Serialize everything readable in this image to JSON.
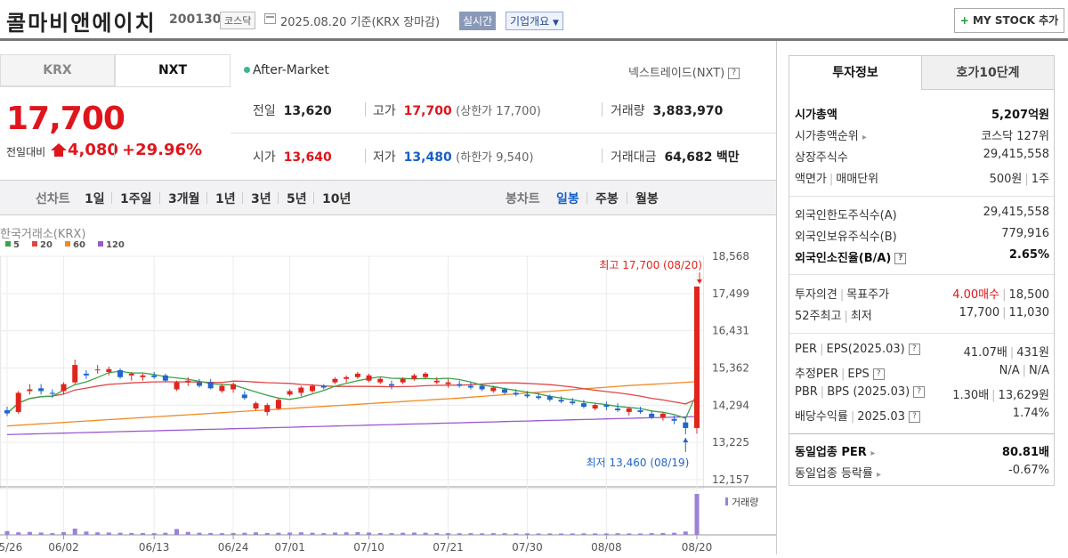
{
  "header": {
    "company": "콜마비앤에이치",
    "code": "200130",
    "market": "코스닥",
    "base_date": "2025.08.20 기준(KRX 장마감)",
    "realtime": "실시간",
    "corp_info": "기업개요",
    "my_stock": "MY STOCK 추가",
    "my_stock_icon": "plus-icon"
  },
  "tabs": {
    "krx": "KRX",
    "nxt": "NXT",
    "after_market": "After-Market",
    "nextrade": "넥스트레이드(NXT)"
  },
  "quote": {
    "price": "17,700",
    "prev_label": "전일대비",
    "change": "4,080",
    "change_pct": "+29.96%",
    "prev_close_label": "전일",
    "prev_close": "13,620",
    "high_label": "고가",
    "high": "17,700",
    "upper_limit": "(상한가 17,700)",
    "volume_label": "거래량",
    "volume": "3,883,970",
    "open_label": "시가",
    "open": "13,640",
    "low_label": "저가",
    "low": "13,480",
    "lower_limit": "(하한가 9,540)",
    "amount_label": "거래대금",
    "amount": "64,682",
    "amount_unit": "백만"
  },
  "toolbar": {
    "line_chart": "선차트",
    "line_periods": [
      "1일",
      "1주일",
      "3개월",
      "1년",
      "3년",
      "5년",
      "10년"
    ],
    "candle_chart": "봉차트",
    "candle_periods": [
      "일봉",
      "주봉",
      "월봉"
    ],
    "selected_candle": "일봉"
  },
  "chart_data": {
    "type": "candlestick",
    "source_label": "한국거래소(KRX)",
    "legend": [
      {
        "name": "5",
        "color": "#3aa34a"
      },
      {
        "name": "20",
        "color": "#e04545"
      },
      {
        "name": "60",
        "color": "#f08a24"
      },
      {
        "name": "120",
        "color": "#9b59d0"
      }
    ],
    "y_ticks": [
      18568,
      17499,
      16431,
      15362,
      14294,
      13225,
      12157
    ],
    "y_tick_labels": [
      "18,568",
      "17,499",
      "16,431",
      "15,362",
      "14,294",
      "13,225",
      "12,157"
    ],
    "ylim": [
      12157,
      18568
    ],
    "x_labels": [
      "05/26",
      "06/02",
      "06/13",
      "06/24",
      "07/01",
      "07/10",
      "07/21",
      "07/30",
      "08/08",
      "08/20"
    ],
    "x_label_index": [
      0,
      5,
      13,
      20,
      25,
      32,
      39,
      46,
      53,
      61
    ],
    "high_annotation": "최고 17,700 (08/20)",
    "low_annotation": "최저 13,460 (08/19)",
    "volume_label": "거래량",
    "candles": [
      [
        14150,
        14250,
        13980,
        14060
      ],
      [
        14100,
        14700,
        14050,
        14650
      ],
      [
        14700,
        14900,
        14600,
        14750
      ],
      [
        14780,
        14900,
        14600,
        14700
      ],
      [
        14650,
        14750,
        14500,
        14620
      ],
      [
        14700,
        14950,
        14600,
        14900
      ],
      [
        14950,
        15600,
        14900,
        15450
      ],
      [
        15200,
        15300,
        15050,
        15150
      ],
      [
        15300,
        15450,
        15200,
        15320
      ],
      [
        15250,
        15400,
        15150,
        15330
      ],
      [
        15300,
        15350,
        15050,
        15100
      ],
      [
        15150,
        15250,
        15000,
        15200
      ],
      [
        15100,
        15200,
        15000,
        15150
      ],
      [
        15150,
        15250,
        15050,
        15100
      ],
      [
        15150,
        15200,
        14950,
        15000
      ],
      [
        14750,
        15000,
        14700,
        14950
      ],
      [
        14950,
        15100,
        14850,
        15000
      ],
      [
        14950,
        15050,
        14800,
        14850
      ],
      [
        14950,
        15050,
        14750,
        14780
      ],
      [
        14700,
        14900,
        14650,
        14850
      ],
      [
        14750,
        14950,
        14650,
        14900
      ],
      [
        14600,
        14700,
        14450,
        14500
      ],
      [
        14200,
        14400,
        14150,
        14350
      ],
      [
        14100,
        14350,
        14000,
        14300
      ],
      [
        14200,
        14500,
        14150,
        14450
      ],
      [
        14600,
        14750,
        14550,
        14700
      ],
      [
        14650,
        14850,
        14550,
        14800
      ],
      [
        14700,
        14900,
        14650,
        14850
      ],
      [
        14850,
        14900,
        14750,
        14800
      ],
      [
        14950,
        15100,
        14900,
        15050
      ],
      [
        15050,
        15150,
        14950,
        15100
      ],
      [
        15100,
        15250,
        15050,
        15200
      ],
      [
        15000,
        15200,
        14950,
        15150
      ],
      [
        14950,
        15100,
        14900,
        15050
      ],
      [
        14900,
        15000,
        14750,
        14850
      ],
      [
        14950,
        15100,
        14900,
        15050
      ],
      [
        15050,
        15200,
        15000,
        15150
      ],
      [
        15100,
        15250,
        15050,
        15200
      ],
      [
        14950,
        15100,
        14900,
        15000
      ],
      [
        14900,
        15050,
        14800,
        14950
      ],
      [
        14900,
        15000,
        14800,
        14850
      ],
      [
        14850,
        14950,
        14750,
        14800
      ],
      [
        14850,
        14900,
        14700,
        14750
      ],
      [
        14700,
        14850,
        14650,
        14800
      ],
      [
        14750,
        14800,
        14600,
        14650
      ],
      [
        14650,
        14750,
        14550,
        14600
      ],
      [
        14600,
        14700,
        14500,
        14550
      ],
      [
        14550,
        14650,
        14450,
        14500
      ],
      [
        14550,
        14600,
        14400,
        14450
      ],
      [
        14450,
        14550,
        14350,
        14400
      ],
      [
        14400,
        14500,
        14300,
        14350
      ],
      [
        14350,
        14450,
        14200,
        14250
      ],
      [
        14200,
        14350,
        14150,
        14300
      ],
      [
        14300,
        14400,
        14150,
        14250
      ],
      [
        14200,
        14350,
        14100,
        14150
      ],
      [
        14100,
        14250,
        14000,
        14200
      ],
      [
        14150,
        14250,
        14050,
        14100
      ],
      [
        14050,
        14150,
        13900,
        13950
      ],
      [
        13950,
        14100,
        13850,
        14050
      ],
      [
        13900,
        14000,
        13750,
        13850
      ],
      [
        13800,
        13950,
        13460,
        13640
      ],
      [
        13640,
        17700,
        13480,
        17700
      ]
    ],
    "volumes": [
      90,
      60,
      70,
      55,
      40,
      65,
      150,
      80,
      60,
      55,
      50,
      45,
      45,
      40,
      50,
      140,
      70,
      50,
      45,
      40,
      45,
      50,
      60,
      45,
      50,
      55,
      60,
      50,
      40,
      55,
      60,
      65,
      55,
      45,
      40,
      50,
      55,
      50,
      45,
      40,
      38,
      40,
      36,
      40,
      38,
      35,
      36,
      34,
      35,
      33,
      34,
      36,
      35,
      34,
      38,
      35,
      33,
      40,
      45,
      50,
      80,
      980
    ]
  },
  "right_panel": {
    "tab_invest": "투자정보",
    "tab_hoga": "호가10단계",
    "market_cap_label": "시가총액",
    "market_cap": "5,207억원",
    "rank_label": "시가총액순위",
    "rank": "코스닥 127위",
    "listed_label": "상장주식수",
    "listed": "29,415,558",
    "par_label": "액면가",
    "unit_label": "매매단위",
    "par": "500원",
    "unit": "1주",
    "foreign_limit_label": "외국인한도주식수(A)",
    "foreign_limit": "29,415,558",
    "foreign_hold_label": "외국인보유주식수(B)",
    "foreign_hold": "779,916",
    "foreign_ratio_label": "외국인소진율(B/A)",
    "foreign_ratio": "2.65%",
    "opinion_label": "투자의견",
    "target_label": "목표주가",
    "opinion": "4.00매수",
    "target": "18,500",
    "w52_label": "52주최고",
    "w52_low_label": "최저",
    "w52_high": "17,700",
    "w52_low": "11,030",
    "per_label": "PER",
    "eps_label": "EPS(2025.03)",
    "per": "41.07배",
    "eps": "431원",
    "est_per_label": "추정PER",
    "est_eps_label": "EPS",
    "est_per": "N/A",
    "est_eps": "N/A",
    "pbr_label": "PBR",
    "bps_label": "BPS (2025.03)",
    "pbr": "1.30배",
    "bps": "13,629원",
    "div_label": "배당수익률",
    "div_date": "2025.03",
    "div": "1.74%",
    "ind_per_label": "동일업종 PER",
    "ind_per": "80.81배",
    "ind_rate_label": "동일업종 등락률",
    "ind_rate": "-0.67%"
  }
}
